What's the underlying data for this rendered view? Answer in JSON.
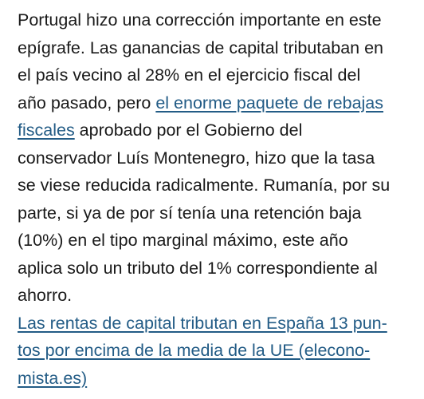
{
  "article": {
    "paragraph": {
      "l1": "Portugal hizo una corrección importante en este",
      "l2": "epígrafe. Las ganancias de capital tributaban en",
      "l3": "el país vecino al 28% en el ejercicio fiscal del",
      "l4_pre": "año pasado, pero ",
      "l4_link": "el enorme paquete de rebajas",
      "l5_link": "fiscales",
      "l5_post": " aprobado por el Gobierno del",
      "l6": "conservador Luís Montenegro, hizo que la tasa",
      "l7": "se viese reducida radicalmente. Rumanía, por su",
      "l8": "parte, si ya de por sí tenía una retención baja",
      "l9": "(10%) en el tipo marginal máximo, este año",
      "l10": "aplica solo un tributo del 1% correspondiente al",
      "l11": "ahorro."
    },
    "related_link": {
      "l1": "Las rentas de capital tributan en España 13 pun-",
      "l2": "tos por encima de la media de la UE (elecono-",
      "l3": "mista.es)"
    }
  }
}
